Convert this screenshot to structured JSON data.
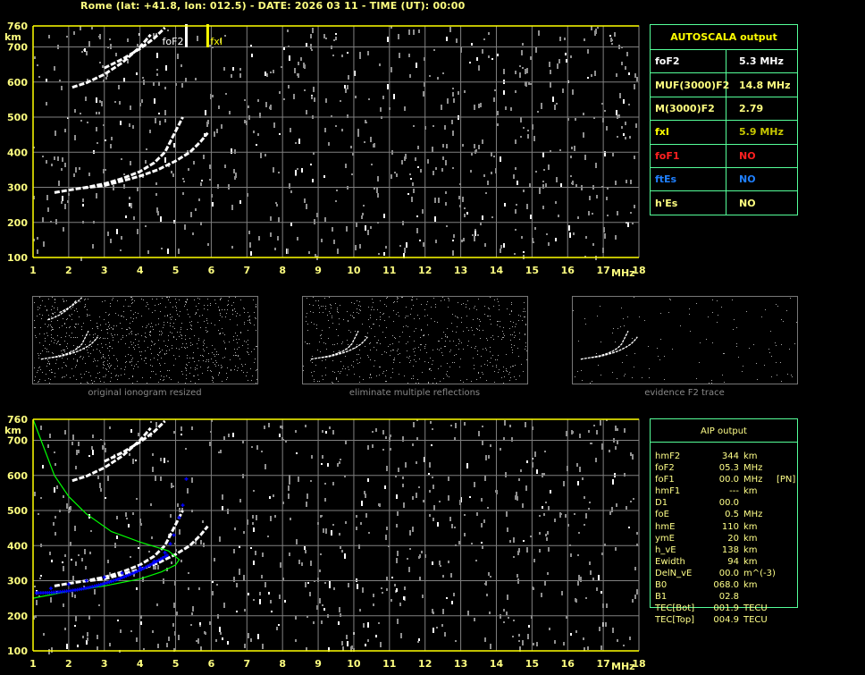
{
  "header": {
    "title": "Rome (lat: +41.8, lon: 012.5) - DATE: 2026 03 11 - TIME (UT): 00:00"
  },
  "colors": {
    "axis": "#ffff00",
    "grid": "#808080",
    "trace": "#ffffff",
    "noise": "#909090",
    "profile": "#00ff00",
    "aip_points": "#0000ff",
    "table_border": "#55ff99",
    "foF1": "#ff2020",
    "ftEs": "#2080ff"
  },
  "chart_data": [
    {
      "type": "scatter",
      "title": "",
      "xlabel": "MHz",
      "ylabel": "km",
      "xlim": [
        1,
        18
      ],
      "ylim": [
        100,
        760
      ],
      "xticks": [
        "1",
        "2",
        "3",
        "4",
        "5",
        "6",
        "7",
        "8",
        "9",
        "10",
        "11",
        "12",
        "13",
        "14",
        "15",
        "16",
        "17",
        "18"
      ],
      "yticks": [
        "100",
        "200",
        "300",
        "400",
        "500",
        "600",
        "700",
        "760"
      ],
      "grid": true,
      "markers": [
        {
          "label": "foF2",
          "freq": 5.3,
          "color": "#ffffff"
        },
        {
          "label": "fxI",
          "freq": 5.9,
          "color": "#ffff00"
        }
      ],
      "traces": [
        {
          "points": [
            [
              1.6,
              285
            ],
            [
              2.0,
              292
            ],
            [
              2.5,
              300
            ],
            [
              3.0,
              310
            ],
            [
              3.5,
              325
            ],
            [
              4.0,
              345
            ],
            [
              4.4,
              370
            ],
            [
              4.7,
              400
            ],
            [
              4.9,
              440
            ],
            [
              5.1,
              480
            ],
            [
              5.2,
              500
            ]
          ]
        },
        {
          "points": [
            [
              2.4,
              298
            ],
            [
              3.0,
              305
            ],
            [
              3.5,
              318
            ],
            [
              4.0,
              332
            ],
            [
              4.5,
              350
            ],
            [
              5.0,
              375
            ],
            [
              5.4,
              400
            ],
            [
              5.7,
              430
            ],
            [
              5.9,
              455
            ]
          ]
        },
        {
          "points": [
            [
              2.1,
              585
            ],
            [
              2.5,
              598
            ],
            [
              3.0,
              622
            ],
            [
              3.5,
              655
            ],
            [
              4.0,
              700
            ],
            [
              4.3,
              735
            ]
          ]
        },
        {
          "points": [
            [
              3.0,
              640
            ],
            [
              3.5,
              665
            ],
            [
              4.0,
              695
            ],
            [
              4.4,
              725
            ],
            [
              4.7,
              755
            ]
          ]
        }
      ]
    },
    {
      "type": "line",
      "title": "",
      "xlabel": "MHz",
      "ylabel": "km",
      "xlim": [
        1,
        18
      ],
      "ylim": [
        100,
        760
      ],
      "xticks": [
        "1",
        "2",
        "3",
        "4",
        "5",
        "6",
        "7",
        "8",
        "9",
        "10",
        "11",
        "12",
        "13",
        "14",
        "15",
        "16",
        "17",
        "18"
      ],
      "yticks": [
        "100",
        "200",
        "300",
        "400",
        "500",
        "600",
        "700",
        "760"
      ],
      "grid": true,
      "profile": [
        [
          1.0,
          250
        ],
        [
          2.0,
          270
        ],
        [
          3.0,
          285
        ],
        [
          4.0,
          305
        ],
        [
          4.6,
          325
        ],
        [
          5.0,
          345
        ],
        [
          5.1,
          360
        ],
        [
          4.8,
          385
        ],
        [
          4.0,
          410
        ],
        [
          3.2,
          440
        ],
        [
          2.5,
          490
        ],
        [
          2.0,
          540
        ],
        [
          1.6,
          600
        ],
        [
          1.3,
          680
        ],
        [
          1.0,
          760
        ]
      ],
      "aip_points": [
        [
          1.1,
          265
        ],
        [
          1.5,
          278
        ],
        [
          2.0,
          290
        ],
        [
          2.5,
          300
        ],
        [
          3.0,
          310
        ],
        [
          3.5,
          322
        ],
        [
          4.0,
          338
        ],
        [
          4.4,
          355
        ],
        [
          4.7,
          380
        ],
        [
          4.85,
          405
        ],
        [
          4.95,
          430
        ],
        [
          5.1,
          480
        ],
        [
          5.2,
          515
        ],
        [
          5.3,
          590
        ]
      ],
      "traces": [
        {
          "points": [
            [
              1.6,
              285
            ],
            [
              2.0,
              292
            ],
            [
              2.5,
              300
            ],
            [
              3.0,
              310
            ],
            [
              3.5,
              325
            ],
            [
              4.0,
              345
            ],
            [
              4.4,
              370
            ],
            [
              4.7,
              400
            ],
            [
              4.9,
              440
            ],
            [
              5.1,
              480
            ],
            [
              5.2,
              500
            ]
          ]
        },
        {
          "points": [
            [
              2.4,
              298
            ],
            [
              3.0,
              305
            ],
            [
              3.5,
              318
            ],
            [
              4.0,
              332
            ],
            [
              4.5,
              350
            ],
            [
              5.0,
              375
            ],
            [
              5.4,
              400
            ],
            [
              5.7,
              430
            ],
            [
              5.9,
              455
            ]
          ]
        },
        {
          "points": [
            [
              2.1,
              585
            ],
            [
              2.5,
              598
            ],
            [
              3.0,
              622
            ],
            [
              3.5,
              655
            ],
            [
              4.0,
              700
            ],
            [
              4.3,
              735
            ]
          ]
        },
        {
          "points": [
            [
              3.0,
              640
            ],
            [
              3.5,
              665
            ],
            [
              4.0,
              695
            ],
            [
              4.4,
              725
            ],
            [
              4.7,
              755
            ]
          ]
        }
      ]
    }
  ],
  "thumbnails": [
    {
      "label": "original ionogram resized"
    },
    {
      "label": "eliminate multiple reflections"
    },
    {
      "label": "evidence F2 trace"
    }
  ],
  "autoscala": {
    "title": "AUTOSCALA output",
    "rows": [
      {
        "key": "foF2",
        "value": "5.3 MHz",
        "kcolor": "#ffffff",
        "vcolor": "#ffffff"
      },
      {
        "key": "MUF(3000)F2",
        "value": "14.8 MHz",
        "kcolor": "#ffff80",
        "vcolor": "#ffff80"
      },
      {
        "key": "M(3000)F2",
        "value": "2.79",
        "kcolor": "#ffff80",
        "vcolor": "#ffff80"
      },
      {
        "key": "fxI",
        "value": "5.9 MHz",
        "kcolor": "#ffff00",
        "vcolor": "#c8c800"
      },
      {
        "key": "foF1",
        "value": "NO",
        "kcolor": "#ff2020",
        "vcolor": "#ff2020"
      },
      {
        "key": "ftEs",
        "value": "NO",
        "kcolor": "#2080ff",
        "vcolor": "#2080ff"
      },
      {
        "key": "h'Es",
        "value": "NO",
        "kcolor": "#ffff80",
        "vcolor": "#ffff80"
      }
    ]
  },
  "aip": {
    "title": "AIP output",
    "rows": [
      {
        "k": "hmF2",
        "v": "344",
        "u": "km",
        "x": ""
      },
      {
        "k": "foF2",
        "v": "05.3",
        "u": "MHz",
        "x": ""
      },
      {
        "k": "foF1",
        "v": "00.0",
        "u": "MHz",
        "x": "[PN]"
      },
      {
        "k": "hmF1",
        "v": "---",
        "u": "km",
        "x": ""
      },
      {
        "k": "D1",
        "v": "00.0",
        "u": "",
        "x": ""
      },
      {
        "k": "foE",
        "v": "0.5",
        "u": "MHz",
        "x": ""
      },
      {
        "k": "hmE",
        "v": "110",
        "u": "km",
        "x": ""
      },
      {
        "k": "ymE",
        "v": "20",
        "u": "km",
        "x": ""
      },
      {
        "k": "h_vE",
        "v": "138",
        "u": "km",
        "x": ""
      },
      {
        "k": "Ewidth",
        "v": "94",
        "u": "km",
        "x": ""
      },
      {
        "k": "DelN_vE",
        "v": "00.0",
        "u": "m^(-3)",
        "x": ""
      },
      {
        "k": "B0",
        "v": "068.0",
        "u": "km",
        "x": ""
      },
      {
        "k": "B1",
        "v": "02.8",
        "u": "",
        "x": ""
      },
      {
        "k": "TEC[Bot]",
        "v": "001.9",
        "u": "TECU",
        "x": ""
      },
      {
        "k": "TEC[Top]",
        "v": "004.9",
        "u": "TECU",
        "x": ""
      }
    ]
  }
}
